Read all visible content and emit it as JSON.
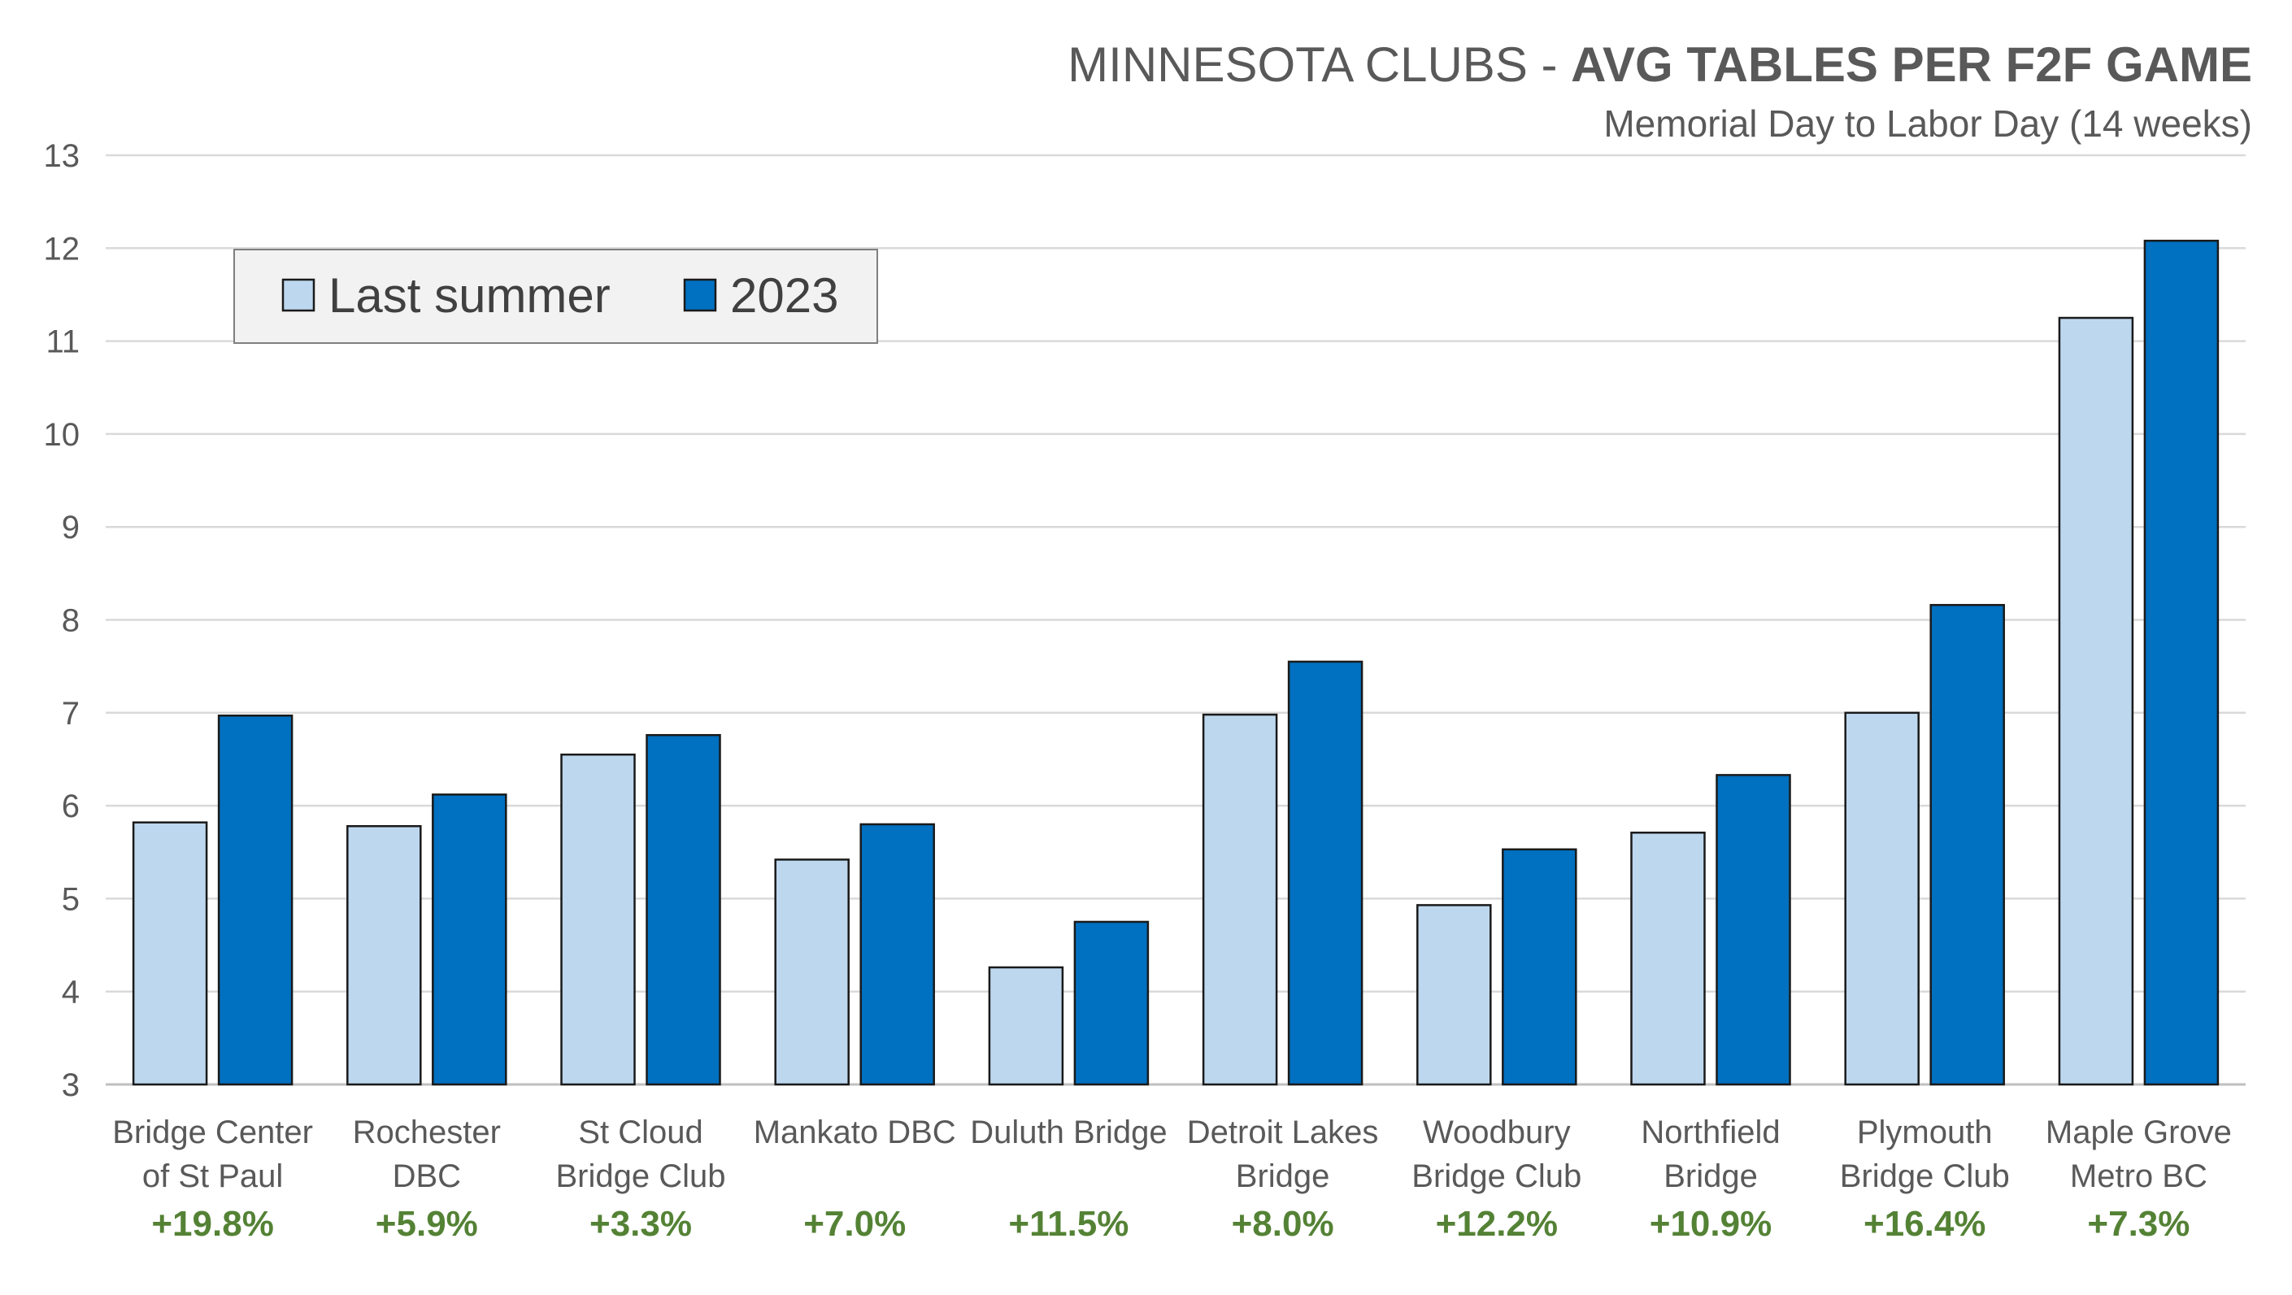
{
  "chart_data": {
    "type": "bar",
    "title_prefix": "MINNESOTA CLUBS - ",
    "title_bold": "AVG TABLES PER F2F GAME",
    "subtitle": "Memorial Day to Labor Day (14 weeks)",
    "ylim": [
      3,
      13
    ],
    "yticks": [
      "3",
      "4",
      "5",
      "6",
      "7",
      "8",
      "9",
      "10",
      "11",
      "12",
      "13"
    ],
    "grid": true,
    "legend_position": "top-left",
    "categories": [
      [
        "Bridge Center",
        "of St Paul"
      ],
      [
        "Rochester",
        "DBC"
      ],
      [
        "St Cloud",
        "Bridge Club"
      ],
      [
        "Mankato DBC"
      ],
      [
        "Duluth Bridge"
      ],
      [
        "Detroit Lakes",
        "Bridge"
      ],
      [
        "Woodbury",
        "Bridge Club"
      ],
      [
        "Northfield",
        "Bridge"
      ],
      [
        "Plymouth",
        "Bridge Club"
      ],
      [
        "Maple Grove",
        "Metro BC"
      ]
    ],
    "series": [
      {
        "name": "Last summer",
        "color": "#bdd7ee",
        "values": [
          5.82,
          5.78,
          6.55,
          5.42,
          4.26,
          6.98,
          4.93,
          5.71,
          7.0,
          11.25
        ]
      },
      {
        "name": "2023",
        "color": "#0070c0",
        "values": [
          6.97,
          6.12,
          6.76,
          5.8,
          4.75,
          7.55,
          5.53,
          6.33,
          8.16,
          12.08
        ]
      }
    ],
    "annotations": [
      "+19.8%",
      "+5.9%",
      "+3.3%",
      "+7.0%",
      "+11.5%",
      "+8.0%",
      "+12.2%",
      "+10.9%",
      "+16.4%",
      "+7.3%"
    ],
    "annotation_color": "#548235"
  }
}
